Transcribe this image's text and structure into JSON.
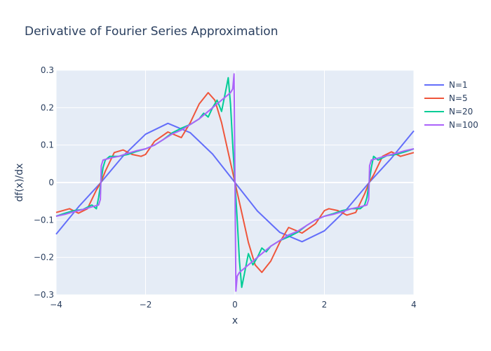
{
  "chart_data": {
    "type": "line",
    "title": "Derivative of Fourier Series Approximation",
    "xlabel": "x",
    "ylabel": "df(x)/dx",
    "xlim": [
      -4,
      4
    ],
    "ylim": [
      -0.3,
      0.3
    ],
    "x_ticks": [
      -4,
      -2,
      0,
      2,
      4
    ],
    "x_tick_labels": [
      "−4",
      "−2",
      "0",
      "2",
      "4"
    ],
    "y_ticks": [
      -0.3,
      -0.2,
      -0.1,
      0,
      0.1,
      0.2,
      0.3
    ],
    "y_tick_labels": [
      "−0.3",
      "−0.2",
      "−0.1",
      "0",
      "0.1",
      "0.2",
      "0.3"
    ],
    "grid": true,
    "legend_position": "top-right",
    "series": [
      {
        "name": "N=1",
        "color": "#636efa",
        "x": [
          -4,
          -3.5,
          -3,
          -2.5,
          -2,
          -1.5,
          -1,
          -0.5,
          0,
          0.5,
          1,
          1.5,
          2,
          2.5,
          3,
          3.5,
          4
        ],
        "y": [
          -0.138,
          -0.065,
          0.0,
          0.071,
          0.129,
          0.158,
          0.133,
          0.076,
          0.0,
          -0.076,
          -0.133,
          -0.158,
          -0.129,
          -0.071,
          0.0,
          0.065,
          0.138
        ]
      },
      {
        "name": "N=5",
        "color": "#ef553b",
        "x": [
          -4,
          -3.7,
          -3.5,
          -3.3,
          -3.1,
          -3,
          -2.9,
          -2.7,
          -2.5,
          -2.3,
          -2.1,
          -2,
          -1.8,
          -1.5,
          -1.2,
          -1,
          -0.8,
          -0.6,
          -0.45,
          -0.3,
          -0.15,
          0,
          0.15,
          0.3,
          0.45,
          0.6,
          0.8,
          1,
          1.2,
          1.5,
          1.8,
          2,
          2.1,
          2.3,
          2.5,
          2.7,
          2.9,
          3,
          3.1,
          3.3,
          3.5,
          3.7,
          4
        ],
        "y": [
          -0.08,
          -0.07,
          -0.082,
          -0.07,
          -0.02,
          0.0,
          0.03,
          0.08,
          0.087,
          0.075,
          0.07,
          0.075,
          0.11,
          0.135,
          0.12,
          0.16,
          0.21,
          0.24,
          0.22,
          0.16,
          0.08,
          0.0,
          -0.08,
          -0.16,
          -0.22,
          -0.24,
          -0.21,
          -0.16,
          -0.12,
          -0.135,
          -0.11,
          -0.075,
          -0.07,
          -0.075,
          -0.087,
          -0.08,
          -0.03,
          0.0,
          0.02,
          0.07,
          0.082,
          0.07,
          0.08
        ]
      },
      {
        "name": "N=20",
        "color": "#00cc96",
        "x": [
          -4,
          -3.8,
          -3.6,
          -3.4,
          -3.2,
          -3.1,
          -3.05,
          -3,
          -2.95,
          -2.9,
          -2.8,
          -2.6,
          -2.4,
          -2.2,
          -2,
          -1.8,
          -1.6,
          -1.4,
          -1.2,
          -1,
          -0.8,
          -0.7,
          -0.6,
          -0.5,
          -0.4,
          -0.3,
          -0.2,
          -0.15,
          -0.1,
          -0.05,
          0,
          0.05,
          0.1,
          0.15,
          0.2,
          0.3,
          0.4,
          0.5,
          0.6,
          0.7,
          0.8,
          1,
          1.2,
          1.4,
          1.6,
          1.8,
          2,
          2.2,
          2.4,
          2.6,
          2.8,
          2.9,
          2.95,
          3,
          3.05,
          3.1,
          3.2,
          3.4,
          3.6,
          3.8,
          4
        ],
        "y": [
          -0.09,
          -0.082,
          -0.075,
          -0.072,
          -0.06,
          -0.07,
          -0.04,
          0.0,
          0.04,
          0.06,
          0.07,
          0.07,
          0.075,
          0.083,
          0.09,
          0.1,
          0.115,
          0.133,
          0.145,
          0.155,
          0.17,
          0.185,
          0.175,
          0.2,
          0.22,
          0.19,
          0.25,
          0.28,
          0.21,
          0.1,
          0.0,
          -0.1,
          -0.21,
          -0.28,
          -0.25,
          -0.19,
          -0.22,
          -0.2,
          -0.175,
          -0.185,
          -0.17,
          -0.155,
          -0.145,
          -0.133,
          -0.115,
          -0.1,
          -0.09,
          -0.083,
          -0.075,
          -0.07,
          -0.07,
          -0.06,
          -0.04,
          0.0,
          0.04,
          0.07,
          0.06,
          0.072,
          0.075,
          0.082,
          0.09
        ]
      },
      {
        "name": "N=100",
        "color": "#ab63fa",
        "x": [
          -4,
          -3.8,
          -3.6,
          -3.4,
          -3.2,
          -3.05,
          -3.01,
          -3,
          -2.99,
          -2.95,
          -2.8,
          -2.6,
          -2.4,
          -2.2,
          -2,
          -1.8,
          -1.6,
          -1.4,
          -1.2,
          -1,
          -0.8,
          -0.6,
          -0.4,
          -0.2,
          -0.1,
          -0.05,
          -0.02,
          0,
          0.02,
          0.05,
          0.1,
          0.2,
          0.4,
          0.6,
          0.8,
          1,
          1.2,
          1.4,
          1.6,
          1.8,
          2,
          2.2,
          2.4,
          2.6,
          2.8,
          2.95,
          2.99,
          3,
          3.01,
          3.05,
          3.2,
          3.4,
          3.6,
          3.8,
          4
        ],
        "y": [
          -0.09,
          -0.085,
          -0.078,
          -0.072,
          -0.065,
          -0.06,
          -0.045,
          0.0,
          0.045,
          0.06,
          0.065,
          0.07,
          0.078,
          0.085,
          0.09,
          0.1,
          0.115,
          0.13,
          0.14,
          0.155,
          0.17,
          0.19,
          0.21,
          0.23,
          0.24,
          0.25,
          0.29,
          0.0,
          -0.29,
          -0.25,
          -0.24,
          -0.23,
          -0.21,
          -0.19,
          -0.17,
          -0.155,
          -0.14,
          -0.13,
          -0.115,
          -0.1,
          -0.09,
          -0.085,
          -0.078,
          -0.07,
          -0.065,
          -0.06,
          -0.045,
          0.0,
          0.045,
          0.06,
          0.065,
          0.072,
          0.078,
          0.085,
          0.09
        ]
      }
    ]
  }
}
